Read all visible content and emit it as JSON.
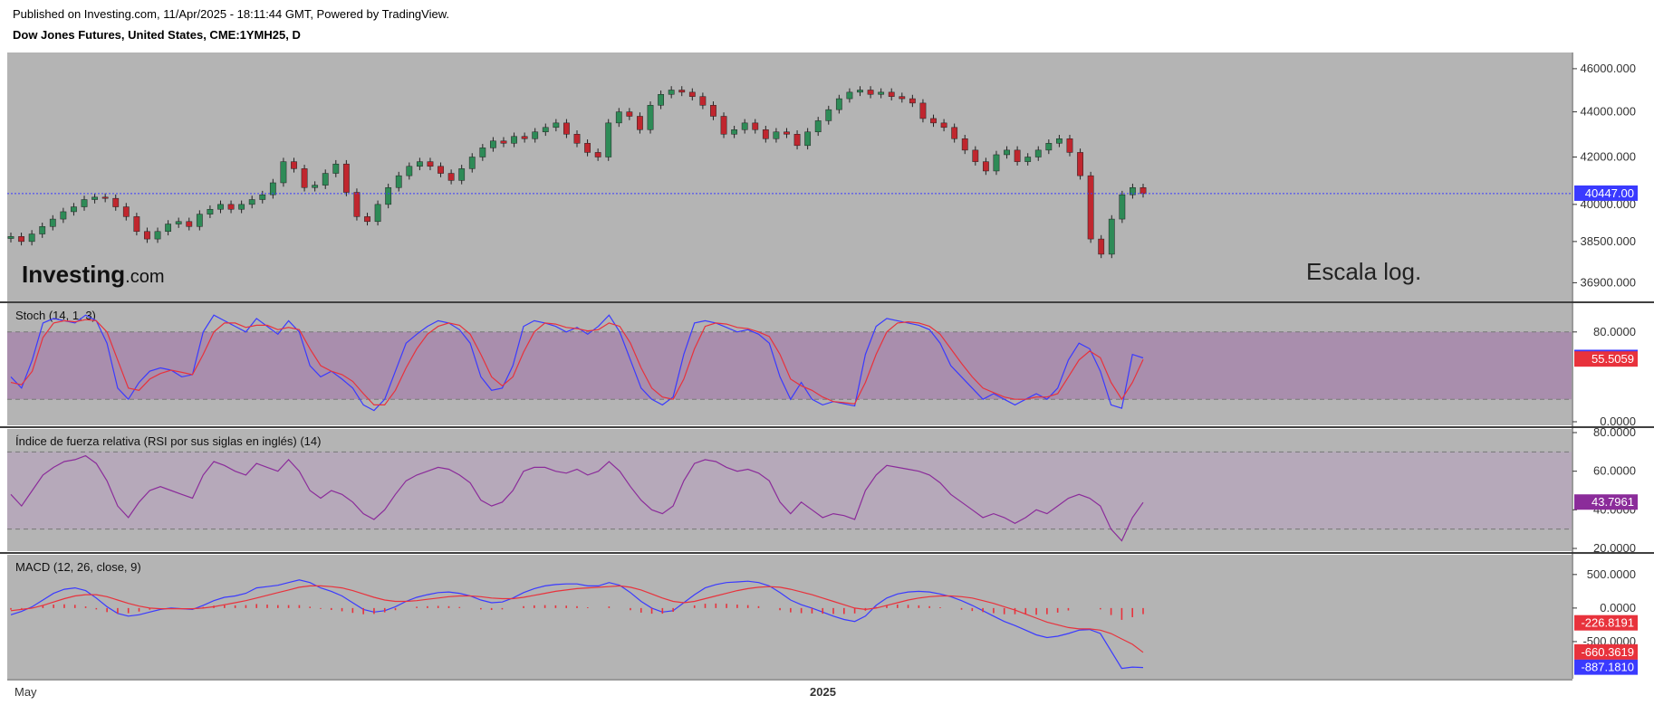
{
  "header": {
    "published": "Published on Investing.com, 11/Apr/2025 - 18:11:44 GMT, Powered by TradingView.",
    "instrument": "Dow Jones Futures, United States, CME:1YMH25, D"
  },
  "watermark": {
    "brand": "Investing",
    "suffix": ".com",
    "scale_note": "Escala log."
  },
  "colors": {
    "pane_bg": "#b4b4b4",
    "up": "#2e8b57",
    "down": "#c0262e",
    "stoch_k": "#3a3aff",
    "stoch_d": "#e8323c",
    "rsi": "#8b2c9a",
    "macd": "#3a3aff",
    "signal": "#e8323c",
    "hist": "#e8323c",
    "last_price_line": "#3a3aff"
  },
  "chart_data": [
    {
      "type": "candlestick",
      "title": "Dow Jones Futures, United States, CME:1YMH25, D",
      "y_ticks": [
        "46000.000",
        "44000.000",
        "42000.000",
        "40000.000",
        "38500.000",
        "36900.000"
      ],
      "y_tick_values": [
        46000,
        44000,
        42000,
        40000,
        38500,
        36900
      ],
      "ylim": [
        36300,
        46600
      ],
      "last_price": 40447.0,
      "last_price_label": "40447.00",
      "closes": [
        38700,
        38500,
        38800,
        39100,
        39400,
        39700,
        39900,
        40200,
        40300,
        40250,
        39900,
        39500,
        38900,
        38600,
        38900,
        39200,
        39300,
        39100,
        39600,
        39800,
        40000,
        39800,
        40000,
        40200,
        40400,
        40900,
        41800,
        41500,
        40700,
        40800,
        41300,
        41700,
        40500,
        39500,
        39300,
        40000,
        40700,
        41200,
        41600,
        41800,
        41600,
        41300,
        41000,
        41500,
        42000,
        42400,
        42700,
        42600,
        42900,
        42800,
        43100,
        43300,
        43500,
        43000,
        42600,
        42200,
        42000,
        43500,
        44000,
        43800,
        43200,
        44300,
        44800,
        45000,
        44900,
        44700,
        44300,
        43800,
        43000,
        43200,
        43500,
        43200,
        42800,
        43100,
        43000,
        42500,
        43100,
        43600,
        44100,
        44600,
        44900,
        45000,
        44800,
        44900,
        44700,
        44600,
        44400,
        43700,
        43500,
        43300,
        42800,
        42300,
        41800,
        41400,
        42100,
        42300,
        41800,
        42000,
        42300,
        42600,
        42800,
        42200,
        41200,
        38600,
        38000,
        39400,
        40400,
        40700,
        40447
      ],
      "panel_y_axis": "log"
    },
    {
      "type": "line",
      "title": "Stoch (14, 1, 3)",
      "y_ticks": [
        "80.0000",
        "0.0000"
      ],
      "ylim": [
        0,
        100
      ],
      "bands": [
        20,
        80
      ],
      "series": [
        {
          "name": "%K",
          "last_label": "56.8944",
          "values": [
            40,
            30,
            55,
            88,
            92,
            90,
            88,
            95,
            90,
            70,
            30,
            20,
            35,
            45,
            48,
            46,
            40,
            42,
            80,
            95,
            90,
            85,
            80,
            92,
            85,
            78,
            90,
            80,
            50,
            40,
            45,
            38,
            30,
            15,
            10,
            20,
            45,
            70,
            78,
            85,
            90,
            88,
            82,
            70,
            40,
            28,
            30,
            50,
            85,
            90,
            88,
            85,
            80,
            84,
            78,
            85,
            95,
            80,
            55,
            30,
            20,
            15,
            22,
            60,
            88,
            90,
            88,
            84,
            80,
            82,
            78,
            70,
            40,
            20,
            35,
            20,
            15,
            18,
            16,
            14,
            60,
            85,
            92,
            90,
            88,
            86,
            82,
            70,
            50,
            40,
            30,
            20,
            25,
            20,
            15,
            20,
            25,
            20,
            30,
            55,
            70,
            65,
            45,
            15,
            12,
            60,
            56.8944
          ]
        },
        {
          "name": "%D",
          "last_label": "55.5059",
          "values": [
            35,
            33,
            45,
            75,
            88,
            90,
            89,
            91,
            90,
            80,
            55,
            30,
            28,
            38,
            43,
            46,
            44,
            42,
            60,
            80,
            88,
            88,
            84,
            86,
            86,
            82,
            84,
            82,
            65,
            50,
            45,
            42,
            36,
            25,
            15,
            15,
            28,
            48,
            65,
            78,
            85,
            88,
            86,
            78,
            60,
            40,
            32,
            40,
            62,
            80,
            88,
            87,
            84,
            83,
            81,
            82,
            88,
            85,
            70,
            48,
            30,
            22,
            20,
            38,
            65,
            85,
            88,
            87,
            84,
            83,
            80,
            76,
            60,
            38,
            32,
            28,
            22,
            18,
            17,
            16,
            35,
            60,
            80,
            88,
            89,
            88,
            85,
            78,
            65,
            52,
            40,
            30,
            26,
            22,
            20,
            20,
            22,
            22,
            25,
            40,
            55,
            63,
            57,
            35,
            20,
            35,
            55.5059
          ]
        }
      ]
    },
    {
      "type": "line",
      "title": "Índice de fuerza relativa (RSI por sus siglas en inglés) (14)",
      "y_ticks": [
        "80.0000",
        "60.0000",
        "40.0000",
        "20.0000"
      ],
      "ylim": [
        20,
        80
      ],
      "bands": [
        30,
        70
      ],
      "series": [
        {
          "name": "RSI",
          "last_label": "43.7961",
          "values": [
            48,
            42,
            50,
            58,
            62,
            65,
            66,
            68,
            64,
            55,
            42,
            36,
            44,
            50,
            52,
            50,
            48,
            46,
            58,
            65,
            63,
            60,
            58,
            64,
            62,
            60,
            66,
            60,
            50,
            46,
            50,
            48,
            44,
            38,
            35,
            40,
            48,
            55,
            58,
            60,
            62,
            61,
            58,
            54,
            45,
            42,
            44,
            50,
            60,
            62,
            62,
            60,
            59,
            61,
            58,
            60,
            65,
            60,
            52,
            45,
            40,
            38,
            42,
            55,
            64,
            66,
            65,
            62,
            60,
            61,
            59,
            55,
            44,
            38,
            44,
            40,
            36,
            38,
            37,
            35,
            50,
            58,
            63,
            62,
            61,
            60,
            58,
            54,
            48,
            44,
            40,
            36,
            38,
            36,
            33,
            36,
            40,
            38,
            42,
            46,
            48,
            46,
            42,
            30,
            24,
            36,
            43.7961
          ]
        }
      ]
    },
    {
      "type": "line",
      "title": "MACD (12, 26, close, 9)",
      "y_ticks": [
        "500.0000",
        "0.0000",
        "-500.0000"
      ],
      "ylim": [
        -1000,
        700
      ],
      "series": [
        {
          "name": "MACD",
          "last_label": "-887.1810",
          "values": [
            -100,
            -50,
            20,
            120,
            220,
            280,
            300,
            260,
            150,
            20,
            -80,
            -120,
            -100,
            -60,
            -20,
            0,
            -10,
            -20,
            40,
            110,
            160,
            180,
            220,
            300,
            320,
            340,
            380,
            420,
            380,
            300,
            250,
            180,
            80,
            -20,
            -60,
            -40,
            20,
            100,
            160,
            200,
            230,
            240,
            220,
            180,
            120,
            80,
            90,
            150,
            230,
            290,
            330,
            350,
            360,
            360,
            330,
            330,
            380,
            340,
            230,
            100,
            0,
            -60,
            -40,
            80,
            200,
            300,
            350,
            380,
            390,
            400,
            380,
            330,
            230,
            120,
            50,
            0,
            -60,
            -120,
            -170,
            -200,
            -120,
            40,
            150,
            210,
            240,
            250,
            240,
            210,
            170,
            110,
            40,
            -40,
            -120,
            -200,
            -260,
            -330,
            -400,
            -440,
            -420,
            -380,
            -330,
            -320,
            -380,
            -640,
            -900,
            -880,
            -887.181
          ]
        },
        {
          "name": "Signal",
          "last_label": "-660.3619",
          "values": [
            -40,
            -20,
            0,
            40,
            90,
            140,
            180,
            200,
            200,
            170,
            120,
            70,
            30,
            0,
            -10,
            -10,
            -10,
            -10,
            0,
            20,
            50,
            80,
            110,
            150,
            190,
            230,
            270,
            310,
            330,
            330,
            320,
            300,
            260,
            210,
            160,
            120,
            100,
            100,
            110,
            130,
            150,
            170,
            180,
            180,
            170,
            150,
            140,
            140,
            160,
            190,
            220,
            250,
            270,
            290,
            300,
            310,
            320,
            330,
            310,
            270,
            210,
            150,
            100,
            80,
            100,
            140,
            180,
            220,
            260,
            290,
            310,
            320,
            310,
            280,
            240,
            200,
            150,
            100,
            50,
            0,
            -20,
            0,
            40,
            80,
            120,
            150,
            170,
            180,
            180,
            170,
            150,
            110,
            70,
            20,
            -30,
            -90,
            -150,
            -210,
            -250,
            -290,
            -310,
            -310,
            -330,
            -380,
            -460,
            -540,
            -660.3619
          ]
        },
        {
          "name": "Histogram",
          "last_label": "-226.8191",
          "values": [
            -60,
            -30,
            20,
            80,
            130,
            140,
            120,
            60,
            -50,
            -150,
            -200,
            -190,
            -130,
            -60,
            -10,
            10,
            0,
            -10,
            40,
            90,
            110,
            100,
            110,
            150,
            130,
            110,
            110,
            110,
            50,
            -30,
            -70,
            -120,
            -180,
            -230,
            -220,
            -160,
            -80,
            0,
            50,
            70,
            80,
            70,
            40,
            0,
            -50,
            -70,
            -50,
            10,
            70,
            100,
            110,
            100,
            90,
            70,
            30,
            20,
            60,
            10,
            -80,
            -170,
            -210,
            -210,
            -140,
            0,
            100,
            160,
            170,
            160,
            130,
            110,
            70,
            10,
            -80,
            -160,
            -190,
            -200,
            -210,
            -220,
            -220,
            -200,
            -100,
            40,
            110,
            130,
            120,
            100,
            70,
            30,
            -10,
            -60,
            -110,
            -150,
            -190,
            -230,
            -230,
            -240,
            -250,
            -230,
            -170,
            -90,
            -20,
            -10,
            -50,
            -260,
            -440,
            -340,
            -226.8191
          ]
        }
      ]
    }
  ],
  "x_axis": {
    "labels": [
      "May",
      "2025"
    ]
  }
}
